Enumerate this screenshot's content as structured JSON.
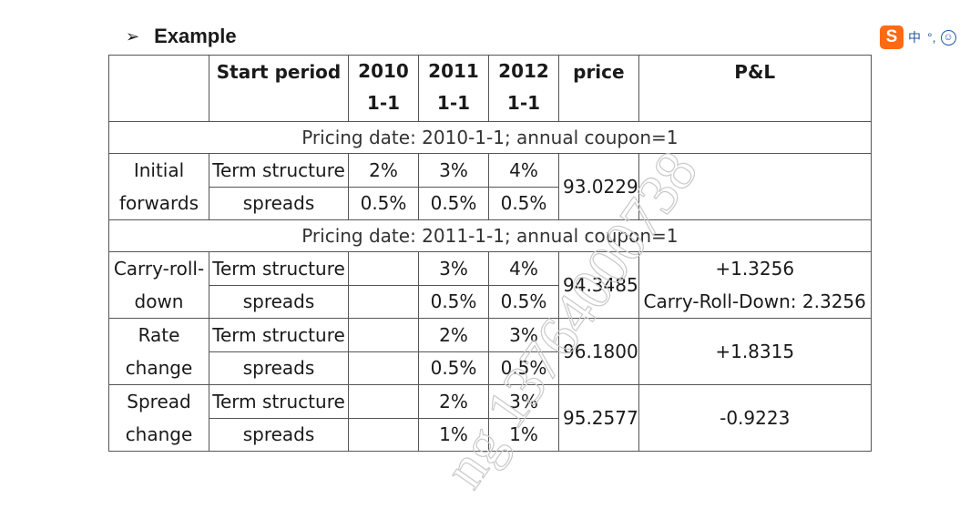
{
  "heading": {
    "bullet": "➢",
    "text": "Example"
  },
  "ime": {
    "logo": "S",
    "lang": "中",
    "punct": "°,",
    "emoji": "☺"
  },
  "table": {
    "header": {
      "col0": "",
      "start_period": "Start period",
      "y2010": [
        "2010",
        "1-1"
      ],
      "y2011": [
        "2011",
        "1-1"
      ],
      "y2012": [
        "2012",
        "1-1"
      ],
      "price": "price",
      "pl": "P&L"
    },
    "section1": "Pricing date: 2010-1-1; annual coupon=1",
    "initial": {
      "label": [
        "Initial",
        "forwards"
      ],
      "term_label": "Term structure",
      "term": [
        "2%",
        "3%",
        "4%"
      ],
      "spread_label": "spreads",
      "spreads": [
        "0.5%",
        "0.5%",
        "0.5%"
      ],
      "price": "93.0229",
      "pl": ""
    },
    "section2": "Pricing date: 2011-1-1; annual coupon=1",
    "carry": {
      "label": [
        "Carry-roll-",
        "down"
      ],
      "term_label": "Term structure",
      "term": [
        "",
        "3%",
        "4%"
      ],
      "spread_label": "spreads",
      "spreads": [
        "",
        "0.5%",
        "0.5%"
      ],
      "price": "94.3485",
      "pl": [
        "+1.3256",
        "Carry-Roll-Down: 2.3256"
      ]
    },
    "rate": {
      "label": [
        "Rate",
        "change"
      ],
      "term_label": "Term structure",
      "term": [
        "",
        "2%",
        "3%"
      ],
      "spread_label": "spreads",
      "spreads": [
        "",
        "0.5%",
        "0.5%"
      ],
      "price": "96.1800",
      "pl": "+1.8315"
    },
    "spread": {
      "label": [
        "Spread",
        "change"
      ],
      "term_label": "Term structure",
      "term": [
        "",
        "2%",
        "3%"
      ],
      "spread_label": "spreads",
      "spreads": [
        "",
        "1%",
        "1%"
      ],
      "price": "95.2577",
      "pl": "-0.9223"
    }
  },
  "watermark": {
    "text": "ng 13764000738"
  }
}
